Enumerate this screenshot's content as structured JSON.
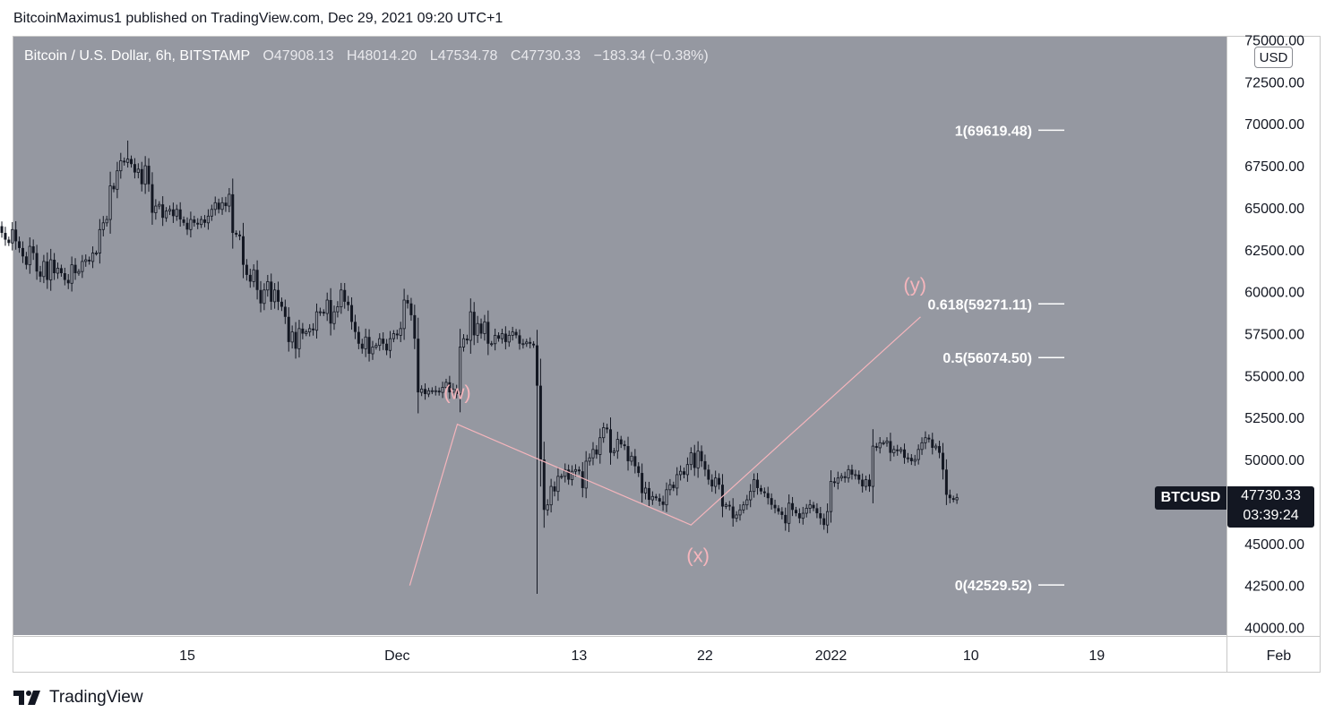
{
  "publisher_line": "BitcoinMaximus1 published on TradingView.com, Dec 29, 2021 09:20 UTC+1",
  "legend": {
    "symbol": "Bitcoin / U.S. Dollar, 6h, BITSTAMP",
    "open_key": "O",
    "open": "47908.13",
    "high_key": "H",
    "high": "48014.20",
    "low_key": "L",
    "low": "47534.78",
    "close_key": "C",
    "close": "47730.33",
    "change": "−183.34 (−0.38%)"
  },
  "currency": "USD",
  "price_label": {
    "symbol": "BTCUSD",
    "value": "47730.33",
    "countdown": "03:39:24"
  },
  "footer": {
    "brand": "TradingView"
  },
  "colors": {
    "plot_bg": "#9598a1",
    "candle": "#131722",
    "wave": "#f5b5bc",
    "fib": "#ffffff",
    "axis_text": "#131722"
  },
  "chart_data": {
    "type": "candlestick",
    "title": "Bitcoin / U.S. Dollar, 6h, BITSTAMP",
    "ylim": [
      40000,
      75000
    ],
    "y_ticks": [
      "75000.00",
      "72500.00",
      "70000.00",
      "67500.00",
      "65000.00",
      "62500.00",
      "60000.00",
      "57500.00",
      "55000.00",
      "52500.00",
      "50000.00",
      "47500.00",
      "45000.00",
      "42500.00",
      "40000.00"
    ],
    "x_ticks": [
      {
        "label": "15",
        "day": 15
      },
      {
        "label": "Dec",
        "day": 30
      },
      {
        "label": "13",
        "day": 43
      },
      {
        "label": "22",
        "day": 52
      },
      {
        "label": "2022",
        "day": 61
      },
      {
        "label": "10",
        "day": 71
      },
      {
        "label": "19",
        "day": 80
      },
      {
        "label": "Feb",
        "day": 93
      }
    ],
    "price_series": {
      "name": "BTCUSD",
      "day0": 1,
      "bars_per_day": 4,
      "closes": [
        61200,
        62800,
        63900,
        63500,
        63100,
        62900,
        63700,
        63000,
        62600,
        62100,
        61600,
        62700,
        62300,
        61200,
        60900,
        61800,
        60700,
        61900,
        61100,
        61400,
        61100,
        60700,
        60500,
        61600,
        61100,
        61200,
        61800,
        61900,
        61800,
        62300,
        62300,
        63700,
        64100,
        64300,
        66300,
        66100,
        67200,
        67800,
        67700,
        67900,
        67600,
        67100,
        67300,
        66400,
        67500,
        66400,
        64700,
        65100,
        65200,
        64400,
        64800,
        64900,
        64500,
        64900,
        64300,
        64100,
        63700,
        64300,
        64100,
        64000,
        64300,
        64100,
        64500,
        64900,
        65300,
        64900,
        65300,
        65100,
        65800,
        63500,
        63400,
        63300,
        61600,
        61000,
        60600,
        61300,
        60100,
        59300,
        60100,
        60600,
        59400,
        60100,
        59400,
        59100,
        58500,
        57000,
        57600,
        56600,
        57800,
        57500,
        57600,
        57800,
        57700,
        58800,
        58800,
        58700,
        59500,
        58100,
        58800,
        59100,
        60100,
        59400,
        59200,
        58200,
        57600,
        56900,
        56600,
        57300,
        56300,
        56700,
        56800,
        57200,
        56900,
        56500,
        57200,
        57500,
        57400,
        57800,
        59500,
        59300,
        58600,
        57200,
        54000,
        54200,
        53900,
        54100,
        54100,
        54100,
        54000,
        54300,
        54600,
        54000,
        54200,
        53900,
        56700,
        57200,
        57100,
        58800,
        57400,
        58100,
        57500,
        58200,
        56900,
        56900,
        57400,
        57200,
        57500,
        57000,
        57400,
        57600,
        57400,
        56900,
        56900,
        57000,
        56900,
        56800,
        54400,
        50000,
        47000,
        47300,
        48400,
        48100,
        49000,
        49000,
        49400,
        48800,
        49300,
        49400,
        49300,
        48300,
        49900,
        50100,
        50600,
        50300,
        51300,
        51900,
        51800,
        50400,
        50500,
        51200,
        50900,
        50800,
        49900,
        50200,
        49600,
        49200,
        48000,
        48300,
        47600,
        47800,
        47700,
        47500,
        47300,
        48200,
        48500,
        48300,
        49100,
        49300,
        49100,
        49700,
        50400,
        49500,
        50500,
        49900,
        49400,
        48800,
        48400,
        48900,
        48500,
        47200,
        47300,
        47200,
        46500,
        46700,
        47000,
        47300,
        47600,
        48100,
        48800,
        48300,
        48100,
        48000,
        47700,
        47300,
        47100,
        46900,
        46700,
        46200,
        47400,
        47000,
        46800,
        46500,
        46800,
        47100,
        47300,
        47100,
        46800,
        46500,
        46100,
        46900,
        48700,
        48600,
        48900,
        49000,
        48900,
        49400,
        49100,
        49100,
        48800,
        48400,
        48800,
        48400,
        50800,
        50700,
        51000,
        51000,
        51100,
        50400,
        50600,
        50500,
        50600,
        50100,
        50100,
        49900,
        50000,
        50600,
        51000,
        51300,
        51200,
        50700,
        50800,
        50400,
        49400,
        47900,
        47700,
        47600,
        47730.33
      ]
    },
    "wave_labels": [
      {
        "text": "(w)",
        "day": 34.3,
        "price": 53600
      },
      {
        "text": "(x)",
        "day": 51.5,
        "price": 43900
      },
      {
        "text": "(y)",
        "day": 67,
        "price": 60000
      }
    ],
    "wave_path": [
      {
        "day": 30.9,
        "price": 42500
      },
      {
        "day": 34.3,
        "price": 52100
      },
      {
        "day": 51.0,
        "price": 46100
      },
      {
        "day": 67.4,
        "price": 58500
      }
    ],
    "fib_levels": [
      {
        "label": "1(69619.48)",
        "price": 69619.48
      },
      {
        "label": "0.618(59271.11)",
        "price": 59271.11
      },
      {
        "label": "0.5(56074.50)",
        "price": 56074.5
      },
      {
        "label": "0(42529.52)",
        "price": 42529.52
      }
    ]
  }
}
